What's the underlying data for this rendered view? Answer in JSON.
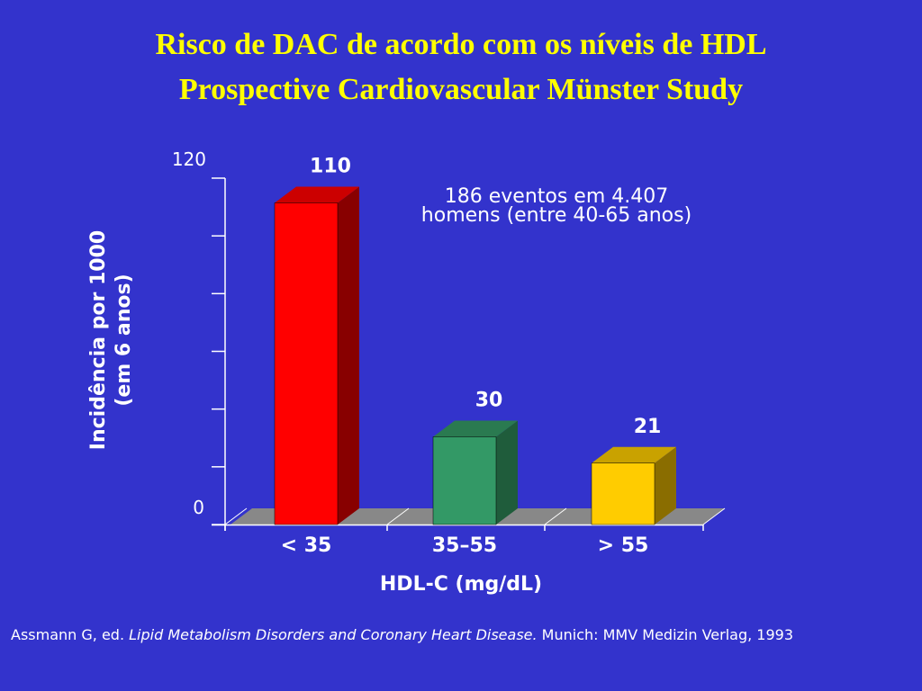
{
  "slide": {
    "title_line1": "Risco de DAC de acordo com os níveis de HDL",
    "title_line2": "Prospective Cardiovascular Münster Study",
    "footnote": {
      "prefix": "Assmann G, ed. ",
      "italic": "Lipid Metabolism Disorders and Coronary Heart Disease.",
      "suffix": " Munich: MMV Medizin Verlag, 1993"
    }
  },
  "colors": {
    "background": "#3333cc",
    "title": "#ffff00",
    "text": "#ffffff",
    "floor": "#888888"
  },
  "chart_data": {
    "type": "bar",
    "categories": [
      "< 35",
      "35–55",
      "> 55"
    ],
    "values": [
      110,
      30,
      21
    ],
    "value_labels": [
      "110",
      "30",
      "21"
    ],
    "bar_colors": [
      {
        "front": "#ff0000",
        "side": "#880000",
        "top": "#cc0000"
      },
      {
        "front": "#339966",
        "side": "#1f5c3b",
        "top": "#2a7a50"
      },
      {
        "front": "#ffcc00",
        "side": "#8a6d00",
        "top": "#c9a200"
      }
    ],
    "xlabel": "HDL-C (mg/dL)",
    "ylabel_line1": "Incidência por 1000",
    "ylabel_line2": "(em 6 anos)",
    "ylim": [
      0,
      120
    ],
    "y_tick_labels": [
      "0",
      "120"
    ],
    "annotation_line1": "186 eventos em 4.407",
    "annotation_line2": "homens (entre 40-65 anos)",
    "grid": false,
    "legend": "none",
    "style": "3d"
  }
}
